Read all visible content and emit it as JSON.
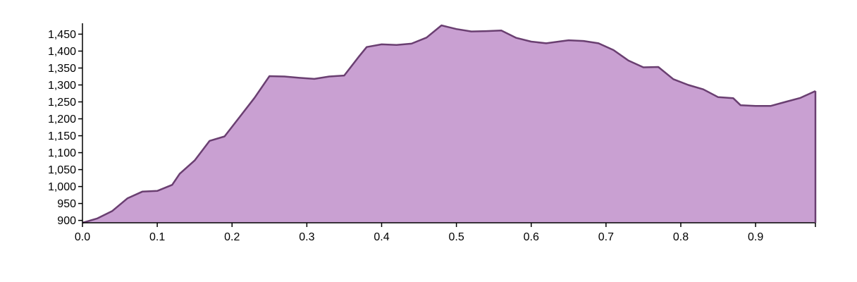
{
  "chart_data": {
    "type": "area",
    "title": "",
    "xlabel": "",
    "ylabel": "",
    "xlim": [
      0,
      0.98
    ],
    "ylim": [
      893,
      1478
    ],
    "x_ticks": [
      "0.0",
      "0.1",
      "0.2",
      "0.3",
      "0.4",
      "0.5",
      "0.6",
      "0.7",
      "0.8",
      "0.9"
    ],
    "y_ticks": [
      "900",
      "950",
      "1,000",
      "1,050",
      "1,100",
      "1,150",
      "1,200",
      "1,250",
      "1,300",
      "1,350",
      "1,400",
      "1,450"
    ],
    "grid": false,
    "fill_color": "#c9a0d2",
    "line_color": "#6a3f71",
    "axis_color": "#000000",
    "series": [
      {
        "x": [
          0.0,
          0.02,
          0.04,
          0.06,
          0.08,
          0.1,
          0.12,
          0.13,
          0.15,
          0.17,
          0.19,
          0.21,
          0.23,
          0.25,
          0.27,
          0.29,
          0.31,
          0.33,
          0.35,
          0.37,
          0.38,
          0.4,
          0.42,
          0.44,
          0.46,
          0.48,
          0.5,
          0.52,
          0.54,
          0.56,
          0.58,
          0.6,
          0.62,
          0.64,
          0.65,
          0.67,
          0.69,
          0.71,
          0.73,
          0.75,
          0.77,
          0.79,
          0.81,
          0.83,
          0.85,
          0.87,
          0.88,
          0.9,
          0.92,
          0.94,
          0.96,
          0.98
        ],
        "y": [
          893,
          906,
          928,
          965,
          985,
          987,
          1005,
          1038,
          1077,
          1135,
          1148,
          1205,
          1262,
          1326,
          1325,
          1321,
          1318,
          1325,
          1328,
          1385,
          1412,
          1420,
          1418,
          1422,
          1440,
          1476,
          1465,
          1458,
          1459,
          1461,
          1439,
          1428,
          1423,
          1429,
          1432,
          1430,
          1423,
          1403,
          1372,
          1352,
          1353,
          1317,
          1300,
          1287,
          1264,
          1261,
          1240,
          1238,
          1238,
          1250,
          1262,
          1282
        ]
      }
    ]
  }
}
